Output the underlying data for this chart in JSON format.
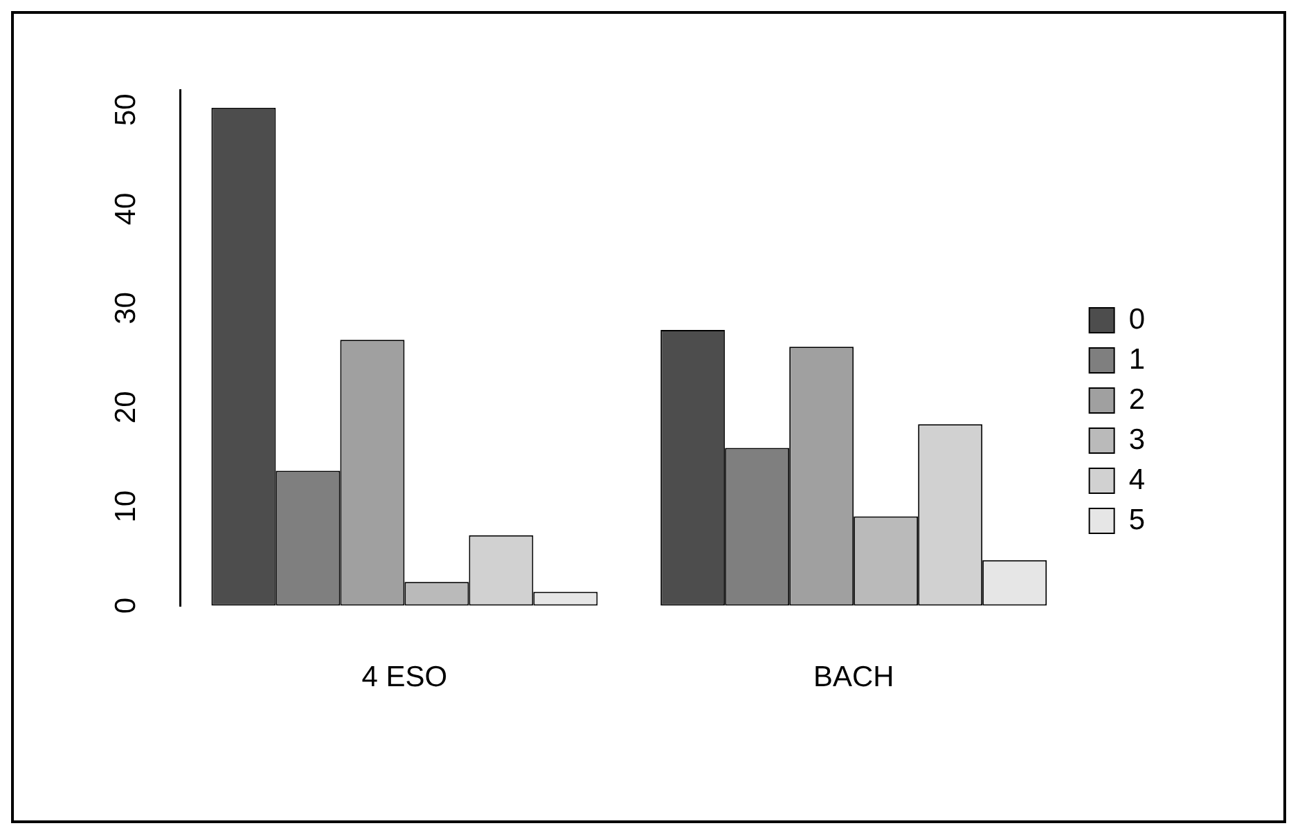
{
  "chart_data": {
    "type": "bar",
    "categories": [
      "4 ESO",
      "BACH"
    ],
    "series": [
      {
        "name": "0",
        "color": "#4d4d4d",
        "values": [
          50.2,
          27.8
        ]
      },
      {
        "name": "1",
        "color": "#7f7f7f",
        "values": [
          13.6,
          15.9
        ]
      },
      {
        "name": "2",
        "color": "#a0a0a0",
        "values": [
          26.8,
          26.1
        ]
      },
      {
        "name": "3",
        "color": "#bababa",
        "values": [
          2.4,
          9.0
        ]
      },
      {
        "name": "4",
        "color": "#d1d1d1",
        "values": [
          7.1,
          18.3
        ]
      },
      {
        "name": "5",
        "color": "#e6e6e6",
        "values": [
          1.4,
          4.6
        ]
      }
    ],
    "ylim": [
      0,
      52
    ],
    "yticks": [
      0,
      10,
      20,
      30,
      40,
      50
    ],
    "grid": false,
    "legend": "right"
  }
}
